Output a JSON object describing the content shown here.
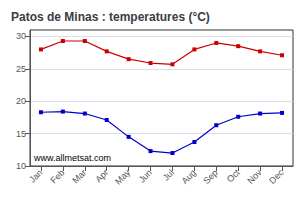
{
  "chart_data": {
    "type": "line",
    "title": "Patos de Minas : temperatures (°C)",
    "categories": [
      "Jan",
      "Feb",
      "Mar",
      "Apr",
      "May",
      "Jun",
      "Jul",
      "Aug",
      "Sep",
      "Oct",
      "Nov",
      "Dec"
    ],
    "series": [
      {
        "color": "#cc0000",
        "values": [
          28.0,
          29.3,
          29.3,
          27.7,
          26.5,
          25.9,
          25.7,
          28.0,
          29.0,
          28.5,
          27.7,
          27.1
        ]
      },
      {
        "color": "#0000cc",
        "values": [
          18.3,
          18.4,
          18.1,
          17.1,
          14.5,
          12.3,
          12.0,
          13.7,
          16.3,
          17.6,
          18.1,
          18.2
        ]
      }
    ],
    "ylim": [
      10,
      31
    ],
    "yticks": [
      10,
      15,
      20,
      25,
      30
    ],
    "grid": true,
    "marker": "square",
    "line_style": "solid",
    "annotation": "www.allmetsat.com"
  }
}
